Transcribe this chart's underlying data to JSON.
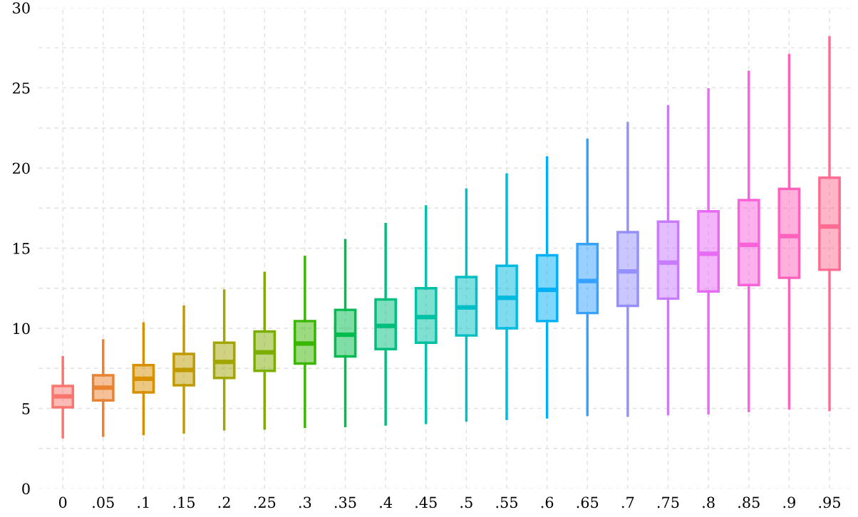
{
  "chart_data": {
    "type": "box",
    "categories": [
      "0",
      ".05",
      ".1",
      ".15",
      ".2",
      ".25",
      ".3",
      ".35",
      ".4",
      ".45",
      ".5",
      ".55",
      ".6",
      ".65",
      ".7",
      ".75",
      ".8",
      ".85",
      ".9",
      ".95"
    ],
    "colors": [
      "#f8766d",
      "#ea8331",
      "#d89000",
      "#c09b00",
      "#a3a500",
      "#7cae00",
      "#39b600",
      "#00bb4e",
      "#00bf7d",
      "#00c1a3",
      "#00bfc4",
      "#00bae0",
      "#00b0f6",
      "#35a2ff",
      "#9590ff",
      "#c77cff",
      "#e76bf3",
      "#fa62db",
      "#ff62bc",
      "#ff6c91"
    ],
    "boxes": [
      {
        "low": 3.2,
        "q1": 5.07,
        "median": 5.75,
        "q3": 6.4,
        "high": 8.2
      },
      {
        "low": 3.3,
        "q1": 5.5,
        "median": 6.3,
        "q3": 7.07,
        "high": 9.25
      },
      {
        "low": 3.4,
        "q1": 6.0,
        "median": 6.85,
        "q3": 7.7,
        "high": 10.3
      },
      {
        "low": 3.5,
        "q1": 6.45,
        "median": 7.4,
        "q3": 8.4,
        "high": 11.35
      },
      {
        "low": 3.7,
        "q1": 6.9,
        "median": 7.9,
        "q3": 9.1,
        "high": 12.35
      },
      {
        "low": 3.75,
        "q1": 7.35,
        "median": 8.5,
        "q3": 9.8,
        "high": 13.45
      },
      {
        "low": 3.85,
        "q1": 7.8,
        "median": 9.05,
        "q3": 10.45,
        "high": 14.45
      },
      {
        "low": 3.9,
        "q1": 8.25,
        "median": 9.6,
        "q3": 11.15,
        "high": 15.5
      },
      {
        "low": 4.0,
        "q1": 8.7,
        "median": 10.15,
        "q3": 11.8,
        "high": 16.5
      },
      {
        "low": 4.1,
        "q1": 9.1,
        "median": 10.7,
        "q3": 12.5,
        "high": 17.6
      },
      {
        "low": 4.25,
        "q1": 9.55,
        "median": 11.3,
        "q3": 13.2,
        "high": 18.65
      },
      {
        "low": 4.35,
        "q1": 10.0,
        "median": 11.9,
        "q3": 13.9,
        "high": 19.6
      },
      {
        "low": 4.45,
        "q1": 10.45,
        "median": 12.4,
        "q3": 14.55,
        "high": 20.65
      },
      {
        "low": 4.6,
        "q1": 10.95,
        "median": 12.95,
        "q3": 15.25,
        "high": 21.75
      },
      {
        "low": 4.55,
        "q1": 11.4,
        "median": 13.55,
        "q3": 16.0,
        "high": 22.8
      },
      {
        "low": 4.65,
        "q1": 11.85,
        "median": 14.1,
        "q3": 16.65,
        "high": 23.85
      },
      {
        "low": 4.7,
        "q1": 12.3,
        "median": 14.65,
        "q3": 17.3,
        "high": 24.9
      },
      {
        "low": 4.85,
        "q1": 12.7,
        "median": 15.2,
        "q3": 18.0,
        "high": 26.0
      },
      {
        "low": 5.0,
        "q1": 13.15,
        "median": 15.75,
        "q3": 18.7,
        "high": 27.05
      },
      {
        "low": 4.9,
        "q1": 13.65,
        "median": 16.35,
        "q3": 19.4,
        "high": 28.15
      }
    ],
    "ylim": [
      0,
      30
    ],
    "yticks": [
      0,
      {
        "value": 2.5,
        "label": null
      },
      5,
      {
        "value": 7.5,
        "label": null
      },
      10,
      {
        "value": 12.5,
        "label": null
      },
      15,
      {
        "value": 17.5,
        "label": null
      },
      20,
      {
        "value": 22.5,
        "label": null
      },
      25,
      {
        "value": 27.5,
        "label": null
      },
      30
    ],
    "grid": true
  }
}
